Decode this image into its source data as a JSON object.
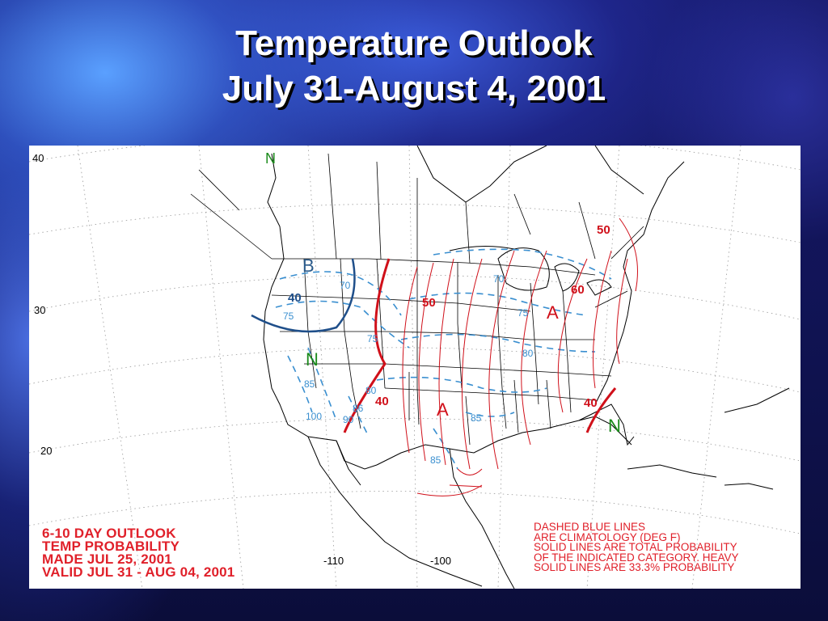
{
  "title": {
    "line1": "Temperature Outlook",
    "line2": "July 31-August 4, 2001"
  },
  "map": {
    "lat_labels": [
      "40",
      "30",
      "20"
    ],
    "lon_labels": [
      "-110",
      "-100"
    ],
    "legend_left": [
      "6-10 DAY OUTLOOK",
      "TEMP PROBABILITY",
      "MADE  JUL 25, 2001",
      "VALID  JUL 31 - AUG 04, 2001"
    ],
    "legend_right": [
      "DASHED BLUE LINES",
      "ARE CLIMATOLOGY (DEG F)",
      "SOLID LINES ARE TOTAL PROBABILITY",
      "OF THE INDICATED CATEGORY. HEAVY",
      "SOLID LINES ARE 33.3% PROBABILITY"
    ],
    "categories": {
      "west_below": "B",
      "southwest_normal": "N",
      "east_above": "A",
      "plains_above": "A",
      "florida_normal": "N",
      "canada_normal": "N"
    },
    "probability_labels": {
      "west_40": "40",
      "central_50": "50",
      "southwest_40": "40",
      "northeast_50": "50",
      "east_60": "60",
      "southeast_40": "40"
    },
    "climatology_labels": [
      "70",
      "75",
      "70",
      "75",
      "85",
      "80",
      "86",
      "90",
      "100",
      "75",
      "80",
      "85",
      "85"
    ],
    "colors": {
      "probability": "#d0101a",
      "climatology": "#3a8fd0",
      "below_contour": "#1f4f8a",
      "normal": "#1a8a1a"
    }
  }
}
